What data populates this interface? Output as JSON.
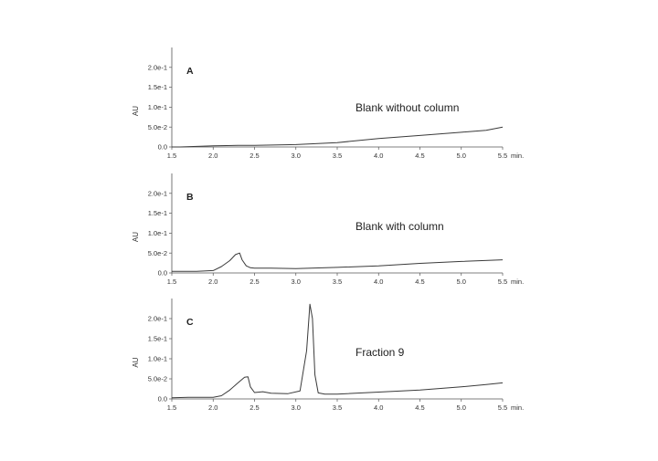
{
  "chart_data": [
    {
      "type": "line",
      "panel_label": "A",
      "annotation": "Blank without column",
      "ylabel": "AU",
      "x_unit": "min.",
      "xlim": [
        1.5,
        5.5
      ],
      "ylim": [
        0,
        0.25
      ],
      "x_ticks": [
        1.5,
        2.0,
        2.5,
        3.0,
        3.5,
        4.0,
        4.5,
        5.0,
        5.5
      ],
      "x_tick_labels": [
        "1.5",
        "2.0",
        "2.5",
        "3.0",
        "3.5",
        "4.0",
        "4.5",
        "5.0",
        "5.5"
      ],
      "y_ticks": [
        0,
        0.05,
        0.1,
        0.15,
        0.2
      ],
      "y_tick_labels": [
        "0.0",
        "5.0e-2",
        "1.0e-1",
        "1.5e-1",
        "2.0e-1"
      ],
      "series": [
        {
          "x": [
            1.5,
            1.6,
            2.0,
            2.3,
            2.5,
            3.0,
            3.5,
            4.0,
            4.5,
            5.0,
            5.3,
            5.5
          ],
          "y": [
            0.0,
            0.0,
            0.003,
            0.004,
            0.004,
            0.006,
            0.011,
            0.021,
            0.029,
            0.037,
            0.042,
            0.05
          ]
        }
      ]
    },
    {
      "type": "line",
      "panel_label": "B",
      "annotation": "Blank with column",
      "ylabel": "AU",
      "x_unit": "min.",
      "xlim": [
        1.5,
        5.5
      ],
      "ylim": [
        0,
        0.25
      ],
      "x_ticks": [
        1.5,
        2.0,
        2.5,
        3.0,
        3.5,
        4.0,
        4.5,
        5.0,
        5.5
      ],
      "x_tick_labels": [
        "1.5",
        "2.0",
        "2.5",
        "3.0",
        "3.5",
        "4.0",
        "4.5",
        "5.0",
        "5.5"
      ],
      "y_ticks": [
        0,
        0.05,
        0.1,
        0.15,
        0.2
      ],
      "y_tick_labels": [
        "0.0",
        "5.0e-2",
        "1.0e-1",
        "1.5e-1",
        "2.0e-1"
      ],
      "series": [
        {
          "x": [
            1.5,
            1.8,
            2.0,
            2.1,
            2.2,
            2.27,
            2.32,
            2.35,
            2.4,
            2.45,
            2.5,
            2.7,
            3.0,
            3.5,
            4.0,
            4.5,
            5.0,
            5.5
          ],
          "y": [
            0.004,
            0.004,
            0.006,
            0.016,
            0.031,
            0.046,
            0.05,
            0.033,
            0.018,
            0.013,
            0.012,
            0.012,
            0.011,
            0.014,
            0.018,
            0.024,
            0.029,
            0.033
          ]
        }
      ]
    },
    {
      "type": "line",
      "panel_label": "C",
      "annotation": "Fraction 9",
      "ylabel": "AU",
      "x_unit": "min.",
      "xlim": [
        1.5,
        5.5
      ],
      "ylim": [
        0,
        0.25
      ],
      "x_ticks": [
        1.5,
        2.0,
        2.5,
        3.0,
        3.5,
        4.0,
        4.5,
        5.0,
        5.5
      ],
      "x_tick_labels": [
        "1.5",
        "2.0",
        "2.5",
        "3.0",
        "3.5",
        "4.0",
        "4.5",
        "5.0",
        "5.5"
      ],
      "y_ticks": [
        0,
        0.05,
        0.1,
        0.15,
        0.2
      ],
      "y_tick_labels": [
        "0.0",
        "5.0e-2",
        "1.0e-1",
        "1.5e-1",
        "2.0e-1"
      ],
      "series": [
        {
          "x": [
            1.5,
            1.7,
            2.0,
            2.1,
            2.2,
            2.3,
            2.38,
            2.42,
            2.45,
            2.5,
            2.6,
            2.7,
            2.9,
            3.05,
            3.13,
            3.17,
            3.2,
            3.23,
            3.27,
            3.35,
            3.5,
            4.0,
            4.5,
            5.0,
            5.3,
            5.5
          ],
          "y": [
            0.003,
            0.004,
            0.004,
            0.008,
            0.022,
            0.04,
            0.054,
            0.055,
            0.03,
            0.016,
            0.018,
            0.014,
            0.013,
            0.02,
            0.12,
            0.236,
            0.2,
            0.06,
            0.015,
            0.012,
            0.012,
            0.017,
            0.022,
            0.03,
            0.036,
            0.04
          ]
        }
      ]
    }
  ]
}
